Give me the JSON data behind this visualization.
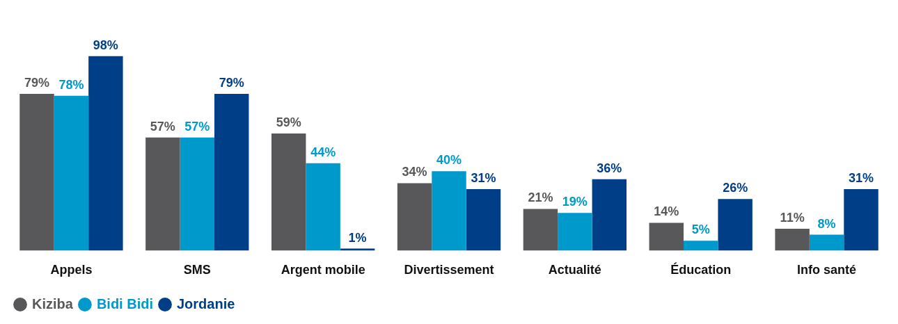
{
  "chart_data": {
    "type": "bar",
    "categories": [
      "Appels",
      "SMS",
      "Argent mobile",
      "Divertissement",
      "Actualité",
      "Éducation",
      "Info santé"
    ],
    "series": [
      {
        "name": "Kiziba",
        "color": "#58585a",
        "values": [
          79,
          57,
          59,
          34,
          21,
          14,
          11
        ],
        "value_labels": [
          "79%",
          "57%",
          "59%",
          "34%",
          "21%",
          "14%",
          "11%"
        ]
      },
      {
        "name": "Bidi Bidi",
        "color": "#0099cc",
        "values": [
          78,
          57,
          44,
          40,
          19,
          5,
          8
        ],
        "value_labels": [
          "78%",
          "57%",
          "44%",
          "40%",
          "19%",
          "5%",
          "8%"
        ]
      },
      {
        "name": "Jordanie",
        "color": "#003f87",
        "values": [
          98,
          79,
          1,
          31,
          36,
          26,
          31
        ],
        "value_labels": [
          "98%",
          "79%",
          "1%",
          "31%",
          "36%",
          "26%",
          "31%"
        ]
      }
    ],
    "legend": "bottom left",
    "grid": false
  }
}
